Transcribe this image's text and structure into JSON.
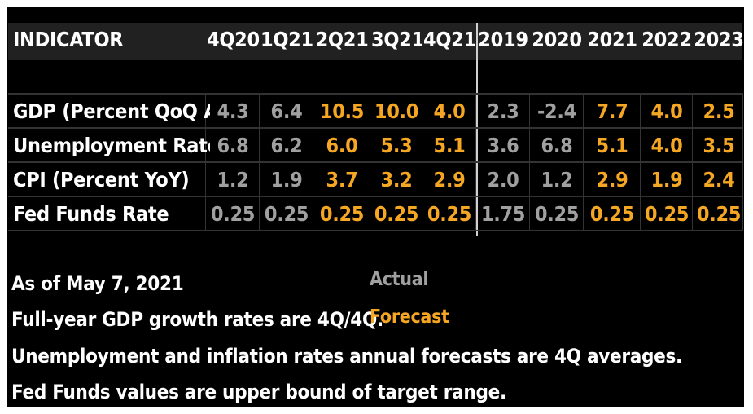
{
  "chart_data": {
    "type": "table",
    "header_label": "INDICATOR",
    "columns": [
      "4Q20",
      "1Q21",
      "2Q21",
      "3Q21",
      "4Q21",
      "2019",
      "2020",
      "2021",
      "2022",
      "2023"
    ],
    "column_status": [
      "actual",
      "actual",
      "forecast",
      "forecast",
      "forecast",
      "actual",
      "actual",
      "forecast",
      "forecast",
      "forecast"
    ],
    "rows": [
      {
        "label": "GDP (Percent QoQ AR)",
        "values": [
          "4.3",
          "6.4",
          "10.5",
          "10.0",
          "4.0",
          "2.3",
          "-2.4",
          "7.7",
          "4.0",
          "2.5"
        ]
      },
      {
        "label": "Unemployment Rate",
        "values": [
          "6.8",
          "6.2",
          "6.0",
          "5.3",
          "5.1",
          "3.6",
          "6.8",
          "5.1",
          "4.0",
          "3.5"
        ]
      },
      {
        "label": "CPI (Percent YoY)",
        "values": [
          "1.2",
          "1.9",
          "3.7",
          "3.2",
          "2.9",
          "2.0",
          "1.2",
          "2.9",
          "1.9",
          "2.4"
        ]
      },
      {
        "label": "Fed Funds Rate",
        "values": [
          "0.25",
          "0.25",
          "0.25",
          "0.25",
          "0.25",
          "1.75",
          "0.25",
          "0.25",
          "0.25",
          "0.25"
        ]
      }
    ]
  },
  "legend": {
    "actual": "Actual",
    "forecast": "Forecast"
  },
  "notes": [
    "As of May 7, 2021",
    "Full-year GDP growth rates are 4Q/4Q.",
    "Unemployment and inflation rates annual forecasts are 4Q averages.",
    "Fed Funds values are upper bound of target range."
  ],
  "colors": {
    "background": "#000000",
    "header": "#212121",
    "actual": "#a0a0a0",
    "forecast": "#f5a623",
    "text": "#ffffff"
  }
}
